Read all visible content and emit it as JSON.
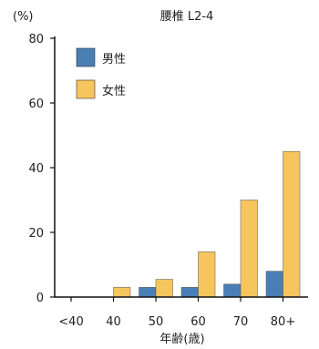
{
  "chart_data": {
    "type": "bar",
    "title": "腰椎 L2-4",
    "ylabel": "(%)",
    "xlabel": "年齢(歳)",
    "ylim": [
      0,
      80
    ],
    "yticks": [
      0,
      20,
      40,
      60,
      80
    ],
    "categories": [
      "<40",
      "40",
      "50",
      "60",
      "70",
      "80+"
    ],
    "series": [
      {
        "name": "男性",
        "color": "#4a7fb5",
        "values": [
          0,
          0,
          3,
          3,
          4,
          8
        ]
      },
      {
        "name": "女性",
        "color": "#f7c55e",
        "values": [
          0,
          3,
          5.5,
          14,
          30,
          45
        ]
      }
    ],
    "grid": false,
    "legend_position": "top-left"
  }
}
